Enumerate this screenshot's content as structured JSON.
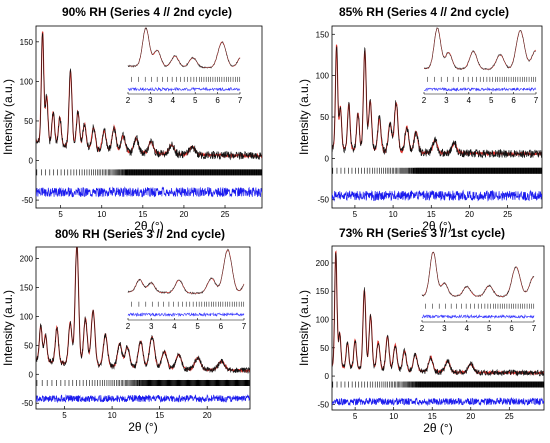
{
  "figure": {
    "type": "multi-panel powder XRD refinement plots"
  },
  "colors": {
    "observed": "#111111",
    "calculated": "#e0302a",
    "difference": "#1a1aee",
    "bragg": "#000000",
    "inset_observed": "#333333",
    "inset_difference": "#3333ff"
  },
  "chart_data": [
    {
      "type": "line",
      "title": "90% RH (Series 4 // 2nd cycle)",
      "xlabel": "2θ (°)",
      "ylabel": "Intensity (a.u.)",
      "xlim": [
        2,
        29.5
      ],
      "ylim": [
        -60,
        170
      ],
      "xticks": [
        5,
        10,
        15,
        20,
        25
      ],
      "yticks": [
        -50,
        0,
        50,
        100,
        150
      ],
      "series": [
        {
          "role": "observed",
          "baseline": 20,
          "peaks": [
            [
              2.8,
              140
            ],
            [
              3.3,
              60
            ],
            [
              4.1,
              40
            ],
            [
              4.9,
              35
            ],
            [
              6.2,
              95
            ],
            [
              7.1,
              45
            ],
            [
              7.9,
              30
            ],
            [
              9.0,
              28
            ],
            [
              10.3,
              25
            ],
            [
              11.5,
              30
            ],
            [
              12.6,
              20
            ],
            [
              14.2,
              18
            ],
            [
              16.0,
              15
            ],
            [
              18.5,
              12
            ],
            [
              21.0,
              10
            ]
          ]
        },
        {
          "role": "calculated"
        },
        {
          "role": "difference",
          "offset": -40
        }
      ],
      "bragg_ticks_y": -15,
      "inset": {
        "xlim": [
          2,
          7
        ],
        "xticks": [
          2,
          3,
          4,
          5,
          6,
          7
        ]
      }
    },
    {
      "type": "line",
      "title": "85% RH (Series 4 // 2nd cycle)",
      "xlabel": "2θ (°)",
      "ylabel": "Intensity (a.u.)",
      "xlim": [
        2,
        29.5
      ],
      "ylim": [
        -60,
        160
      ],
      "xticks": [
        5,
        10,
        15,
        20,
        25
      ],
      "yticks": [
        -50,
        0,
        50,
        100,
        150
      ],
      "series": [
        {
          "role": "observed",
          "baseline": 8,
          "peaks": [
            [
              2.6,
              125
            ],
            [
              3.1,
              50
            ],
            [
              4.2,
              55
            ],
            [
              5.4,
              45
            ],
            [
              6.3,
              120
            ],
            [
              7.0,
              60
            ],
            [
              8.2,
              40
            ],
            [
              9.6,
              35
            ],
            [
              10.4,
              60
            ],
            [
              11.8,
              30
            ],
            [
              13.0,
              25
            ],
            [
              15.5,
              15
            ],
            [
              18.0,
              12
            ]
          ]
        },
        {
          "role": "calculated"
        },
        {
          "role": "difference",
          "offset": -45
        }
      ],
      "bragg_ticks_y": -15,
      "inset": {
        "xlim": [
          2,
          7
        ],
        "xticks": [
          2,
          3,
          4,
          5,
          6,
          7
        ]
      }
    },
    {
      "type": "line",
      "title": "80% RH (Series 3 // 2nd cycle)",
      "xlabel": "2θ (°)",
      "ylabel": "Intensity (a.u.)",
      "xlim": [
        2,
        24.5
      ],
      "ylim": [
        -60,
        220
      ],
      "xticks": [
        5,
        10,
        15,
        20
      ],
      "yticks": [
        -50,
        0,
        50,
        100,
        150,
        200
      ],
      "series": [
        {
          "role": "observed",
          "baseline": 20,
          "peaks": [
            [
              2.5,
              60
            ],
            [
              3.0,
              45
            ],
            [
              4.2,
              60
            ],
            [
              5.6,
              70
            ],
            [
              6.3,
              205
            ],
            [
              7.2,
              80
            ],
            [
              8.0,
              95
            ],
            [
              9.3,
              55
            ],
            [
              10.8,
              40
            ],
            [
              11.6,
              35
            ],
            [
              13.0,
              45
            ],
            [
              14.2,
              55
            ],
            [
              15.5,
              30
            ],
            [
              17.0,
              25
            ],
            [
              19.0,
              20
            ],
            [
              21.5,
              15
            ]
          ]
        },
        {
          "role": "calculated"
        },
        {
          "role": "difference",
          "offset": -42
        }
      ],
      "bragg_ticks_y": -15,
      "inset": {
        "xlim": [
          2,
          7
        ],
        "xticks": [
          2,
          3,
          4,
          5,
          6,
          7
        ]
      }
    },
    {
      "type": "line",
      "title": "73% RH (Series 3 // 1st cycle)",
      "xlabel": "2θ (°)",
      "ylabel": "Intensity (a.u.)",
      "xlim": [
        2,
        29.5
      ],
      "ylim": [
        -60,
        230
      ],
      "xticks": [
        5,
        10,
        15,
        20,
        25
      ],
      "yticks": [
        -50,
        0,
        50,
        100,
        150,
        200
      ],
      "series": [
        {
          "role": "observed",
          "baseline": 12,
          "peaks": [
            [
              2.5,
              205
            ],
            [
              3.0,
              60
            ],
            [
              4.0,
              45
            ],
            [
              5.0,
              50
            ],
            [
              6.2,
              140
            ],
            [
              7.0,
              95
            ],
            [
              8.0,
              50
            ],
            [
              9.2,
              60
            ],
            [
              10.2,
              45
            ],
            [
              11.4,
              35
            ],
            [
              12.8,
              30
            ],
            [
              14.8,
              25
            ],
            [
              17.0,
              20
            ],
            [
              20.0,
              15
            ]
          ]
        },
        {
          "role": "calculated"
        },
        {
          "role": "difference",
          "offset": -45
        }
      ],
      "bragg_ticks_y": -15,
      "inset": {
        "xlim": [
          2,
          7
        ],
        "xticks": [
          2,
          3,
          4,
          5,
          6,
          7
        ]
      }
    }
  ]
}
